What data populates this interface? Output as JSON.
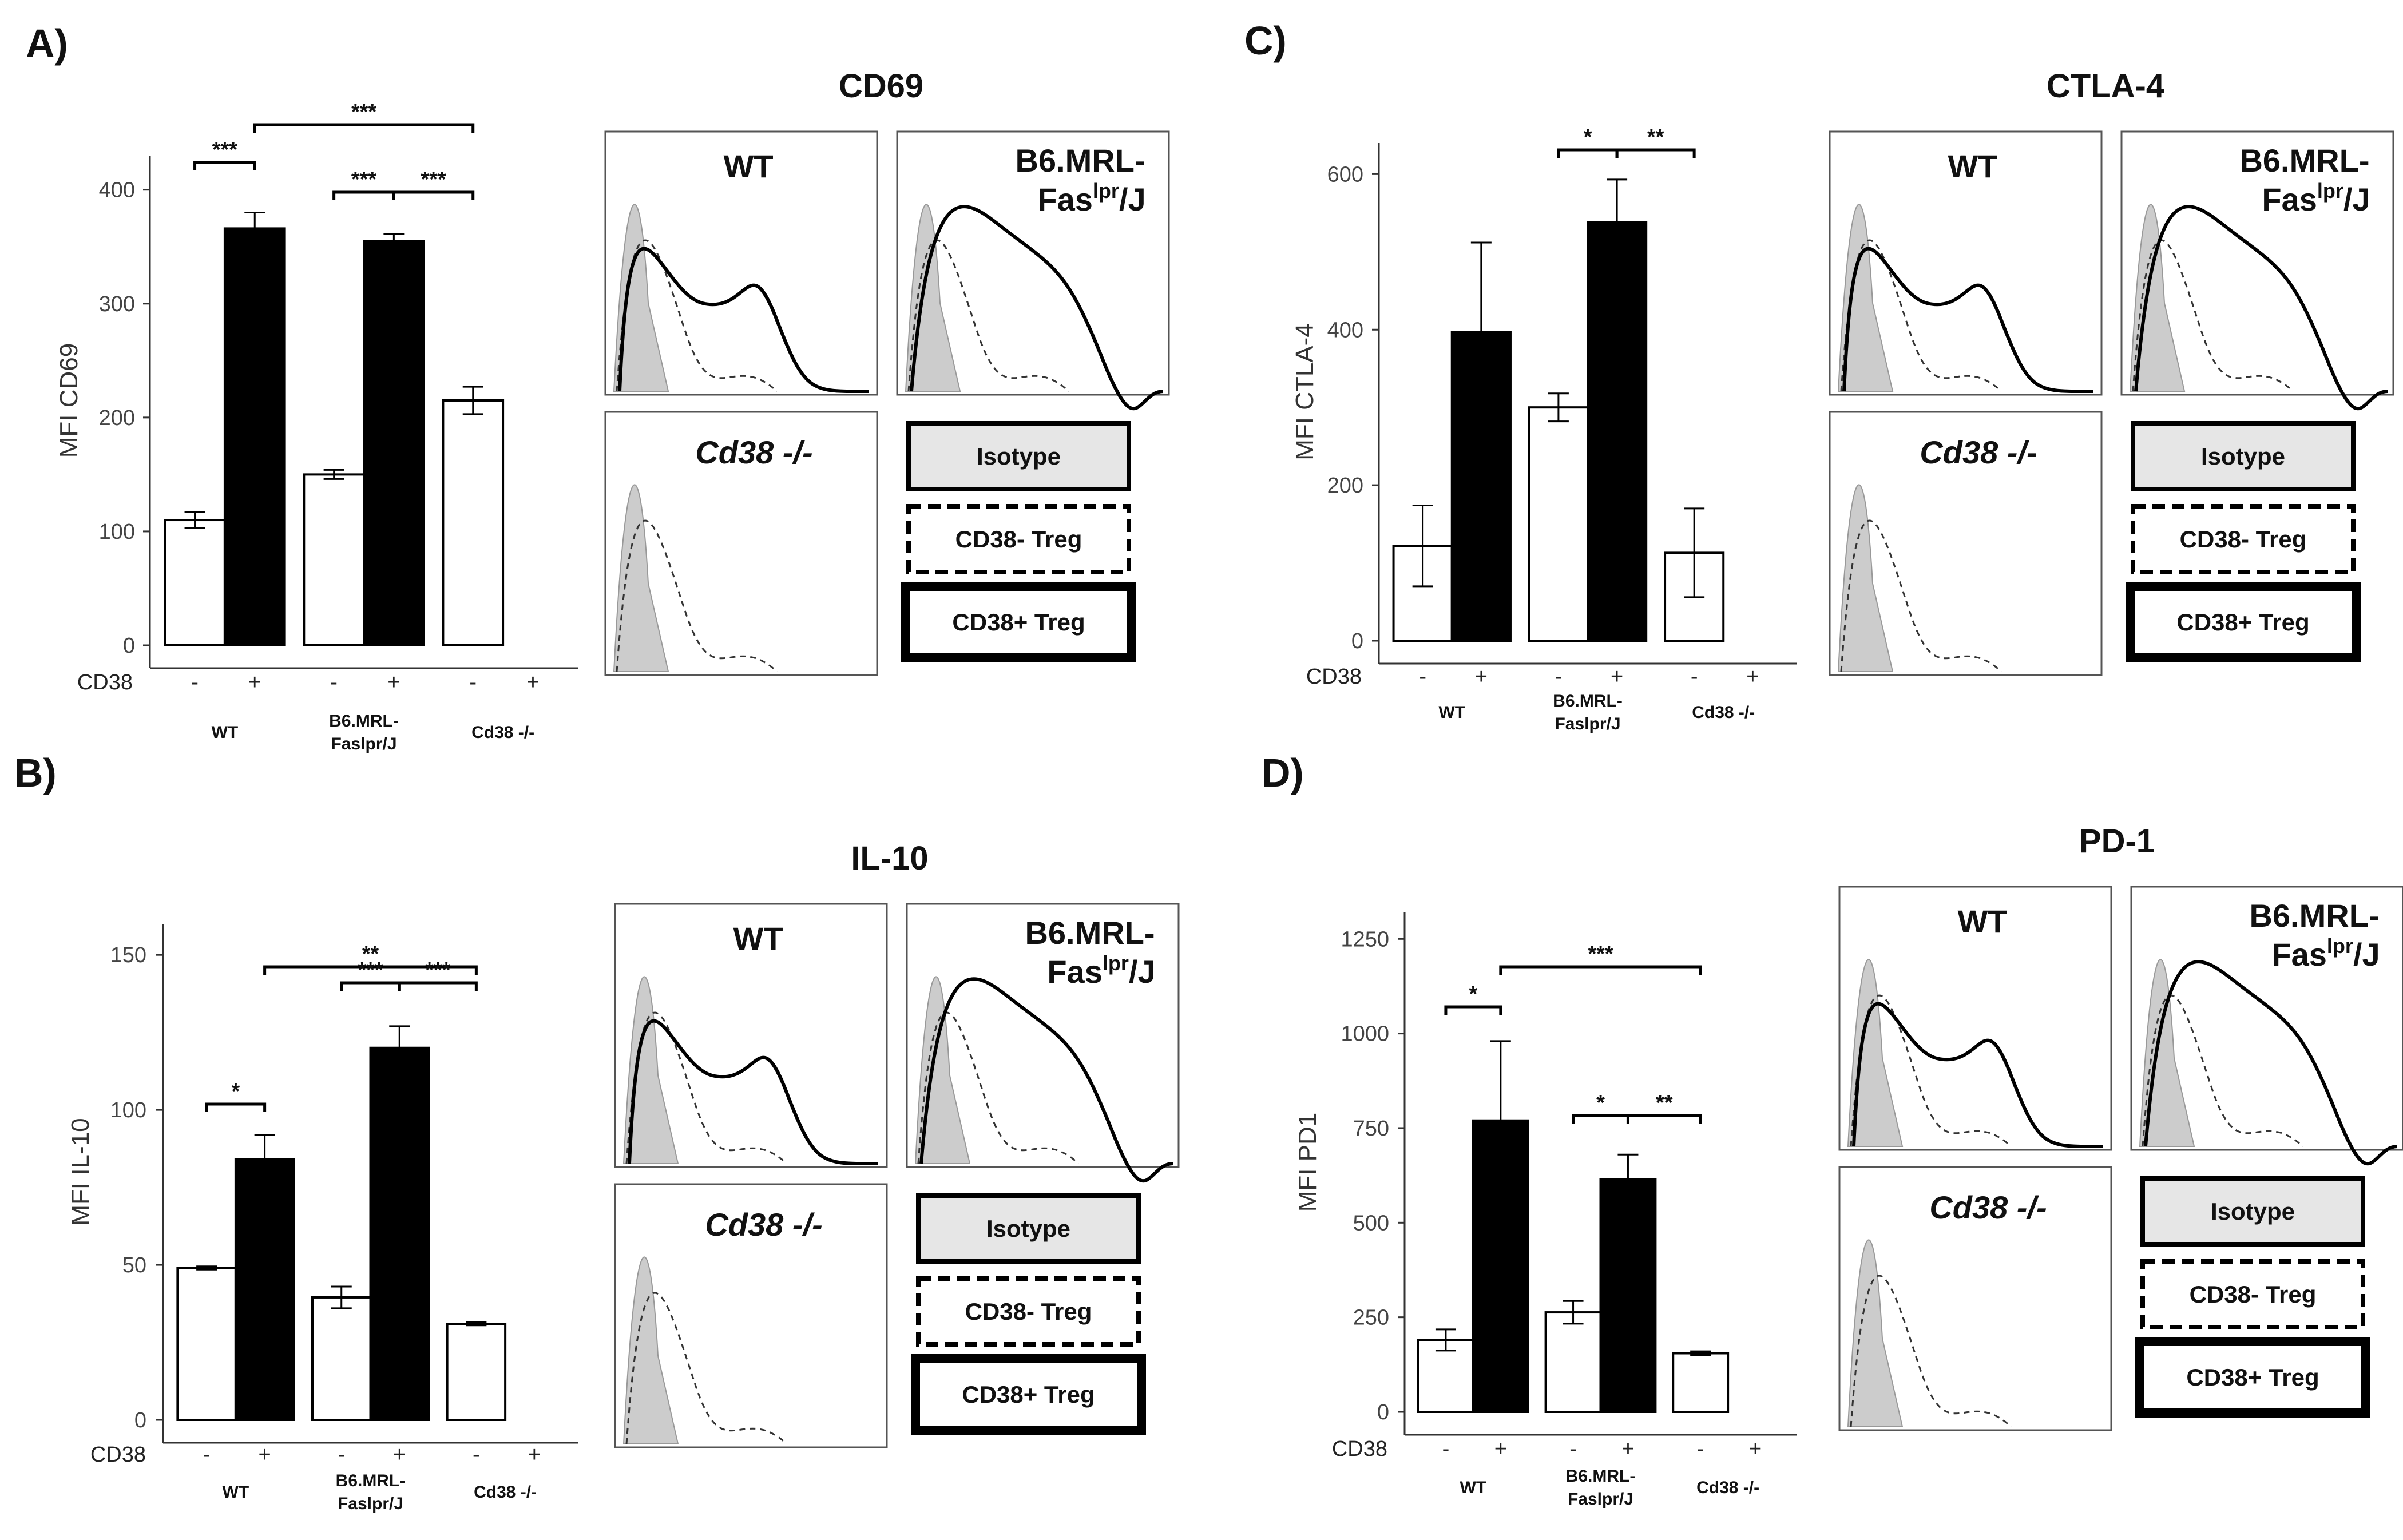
{
  "chart_data": [
    {
      "panel": "A)",
      "type": "bar",
      "title": "",
      "ylabel": "MFI CD69",
      "xlabel": "CD38",
      "ylim": [
        0,
        430
      ],
      "yticks": [
        0,
        100,
        200,
        300,
        400
      ],
      "groups": [
        "WT",
        "B6.MRL-Faslpr/J",
        "Cd38 -/-"
      ],
      "bars": [
        {
          "group": "WT",
          "cd38": "-",
          "value": 110,
          "err": 7
        },
        {
          "group": "WT",
          "cd38": "+",
          "value": 366,
          "err": 14
        },
        {
          "group": "B6.MRL-Faslpr/J",
          "cd38": "-",
          "value": 150,
          "err": 4
        },
        {
          "group": "B6.MRL-Faslpr/J",
          "cd38": "+",
          "value": 355,
          "err": 6
        },
        {
          "group": "Cd38 -/-",
          "cd38": "-",
          "value": 215,
          "err": 12
        },
        {
          "group": "Cd38 -/-",
          "cd38": "+",
          "value": null,
          "err": null
        }
      ],
      "significance": [
        {
          "from": 0,
          "to": 1,
          "label": "***"
        },
        {
          "from": 1,
          "to": 4,
          "label": "***"
        },
        {
          "from": 2,
          "to": 3,
          "label": "***"
        },
        {
          "from": 3,
          "to": 4,
          "label": "***"
        }
      ]
    },
    {
      "panel": "B)",
      "type": "bar",
      "title": "",
      "ylabel": "MFI IL-10",
      "xlabel": "CD38",
      "ylim": [
        0,
        160
      ],
      "yticks": [
        0,
        50,
        100,
        150
      ],
      "groups": [
        "WT",
        "B6.MRL-Faslpr/J",
        "Cd38 -/-"
      ],
      "bars": [
        {
          "group": "WT",
          "cd38": "-",
          "value": 49,
          "err": 0.5
        },
        {
          "group": "WT",
          "cd38": "+",
          "value": 84,
          "err": 8
        },
        {
          "group": "B6.MRL-Faslpr/J",
          "cd38": "-",
          "value": 39.5,
          "err": 3.5
        },
        {
          "group": "B6.MRL-Faslpr/J",
          "cd38": "+",
          "value": 120,
          "err": 7
        },
        {
          "group": "Cd38 -/-",
          "cd38": "-",
          "value": 31,
          "err": 0.5
        },
        {
          "group": "Cd38 -/-",
          "cd38": "+",
          "value": null,
          "err": null
        }
      ],
      "significance": [
        {
          "from": 0,
          "to": 1,
          "label": "*"
        },
        {
          "from": 1,
          "to": 4,
          "label": "**"
        },
        {
          "from": 2,
          "to": 3,
          "label": "***"
        },
        {
          "from": 3,
          "to": 4,
          "label": "***"
        }
      ]
    },
    {
      "panel": "C)",
      "type": "bar",
      "title": "",
      "ylabel": "MFI CTLA-4",
      "xlabel": "CD38",
      "ylim": [
        0,
        640
      ],
      "yticks": [
        0,
        200,
        400,
        600
      ],
      "groups": [
        "WT",
        "B6.MRL-Faslpr/J",
        "Cd38 -/-"
      ],
      "bars": [
        {
          "group": "WT",
          "cd38": "-",
          "value": 122,
          "err": 52
        },
        {
          "group": "WT",
          "cd38": "+",
          "value": 397,
          "err": 115
        },
        {
          "group": "B6.MRL-Faslpr/J",
          "cd38": "-",
          "value": 300,
          "err": 18
        },
        {
          "group": "B6.MRL-Faslpr/J",
          "cd38": "+",
          "value": 538,
          "err": 55
        },
        {
          "group": "Cd38 -/-",
          "cd38": "-",
          "value": 113,
          "err": 57
        },
        {
          "group": "Cd38 -/-",
          "cd38": "+",
          "value": null,
          "err": null
        }
      ],
      "significance": [
        {
          "from": 2,
          "to": 3,
          "label": "*"
        },
        {
          "from": 3,
          "to": 4,
          "label": "**"
        }
      ]
    },
    {
      "panel": "D)",
      "type": "bar",
      "title": "",
      "ylabel": "MFI PD1",
      "xlabel": "CD38",
      "ylim": [
        0,
        1320
      ],
      "yticks": [
        0,
        250,
        500,
        750,
        1000,
        1250
      ],
      "groups": [
        "WT",
        "B6.MRL-Faslpr/J",
        "Cd38 -/-"
      ],
      "bars": [
        {
          "group": "WT",
          "cd38": "-",
          "value": 190,
          "err": 28
        },
        {
          "group": "WT",
          "cd38": "+",
          "value": 770,
          "err": 210
        },
        {
          "group": "B6.MRL-Faslpr/J",
          "cd38": "-",
          "value": 263,
          "err": 30
        },
        {
          "group": "B6.MRL-Faslpr/J",
          "cd38": "+",
          "value": 615,
          "err": 65
        },
        {
          "group": "Cd38 -/-",
          "cd38": "-",
          "value": 155,
          "err": 5
        },
        {
          "group": "Cd38 -/-",
          "cd38": "+",
          "value": null,
          "err": null
        }
      ],
      "significance": [
        {
          "from": 0,
          "to": 1,
          "label": "*"
        },
        {
          "from": 1,
          "to": 4,
          "label": "***"
        },
        {
          "from": 2,
          "to": 3,
          "label": "*"
        },
        {
          "from": 3,
          "to": 4,
          "label": "**"
        }
      ]
    }
  ],
  "labels": {
    "panels": [
      "A)",
      "B)",
      "C)",
      "D)"
    ],
    "hist_titles": [
      "CD69",
      "IL-10",
      "CTLA-4",
      "PD-1"
    ],
    "sign_minus": "-",
    "sign_plus": "+",
    "group_wt": "WT",
    "group_b6_line1": "B6.MRL-",
    "group_b6_line2": "Faslpr/J",
    "group_ko": "Cd38 -/-",
    "box_wt": "WT",
    "box_b6_line1": "B6.MRL-",
    "box_b6_fas": "Fas",
    "box_b6_lpr": "lpr",
    "box_b6_j": "/J",
    "box_ko": "Cd38 -/-",
    "legend_isotype": "Isotype",
    "legend_neg": "CD38- Treg",
    "legend_pos": "CD38+ Treg"
  },
  "colors": {
    "black_bar": "#000000",
    "white_bar": "#ffffff",
    "isotype_fill": "#cccccc",
    "legend_fill": "#e6e6e6"
  }
}
